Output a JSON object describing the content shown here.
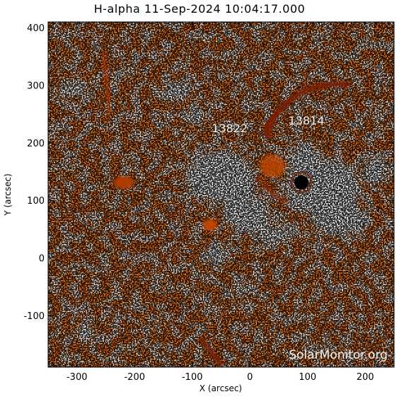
{
  "title": "H-alpha 11-Sep-2024 10:04:17.000",
  "x_axis": {
    "label": "X (arcsec)",
    "range": [
      -350,
      250
    ],
    "ticks": [
      -300,
      -200,
      -100,
      0,
      100,
      200
    ]
  },
  "y_axis": {
    "label": "Y (arcsec)",
    "range": [
      -190,
      410
    ],
    "ticks": [
      -100,
      0,
      100,
      200,
      300,
      400
    ]
  },
  "active_regions": [
    {
      "label": "13822",
      "x": -35,
      "y": 218
    },
    {
      "label": "13814",
      "x": 98,
      "y": 232
    }
  ],
  "watermark": "SolarMonitor.org",
  "colors": {
    "background": "#ffffff",
    "chromosphere": "#f07820",
    "plage": "#ffffff",
    "filament": "#7a1e00",
    "sunspot": "#000000"
  }
}
